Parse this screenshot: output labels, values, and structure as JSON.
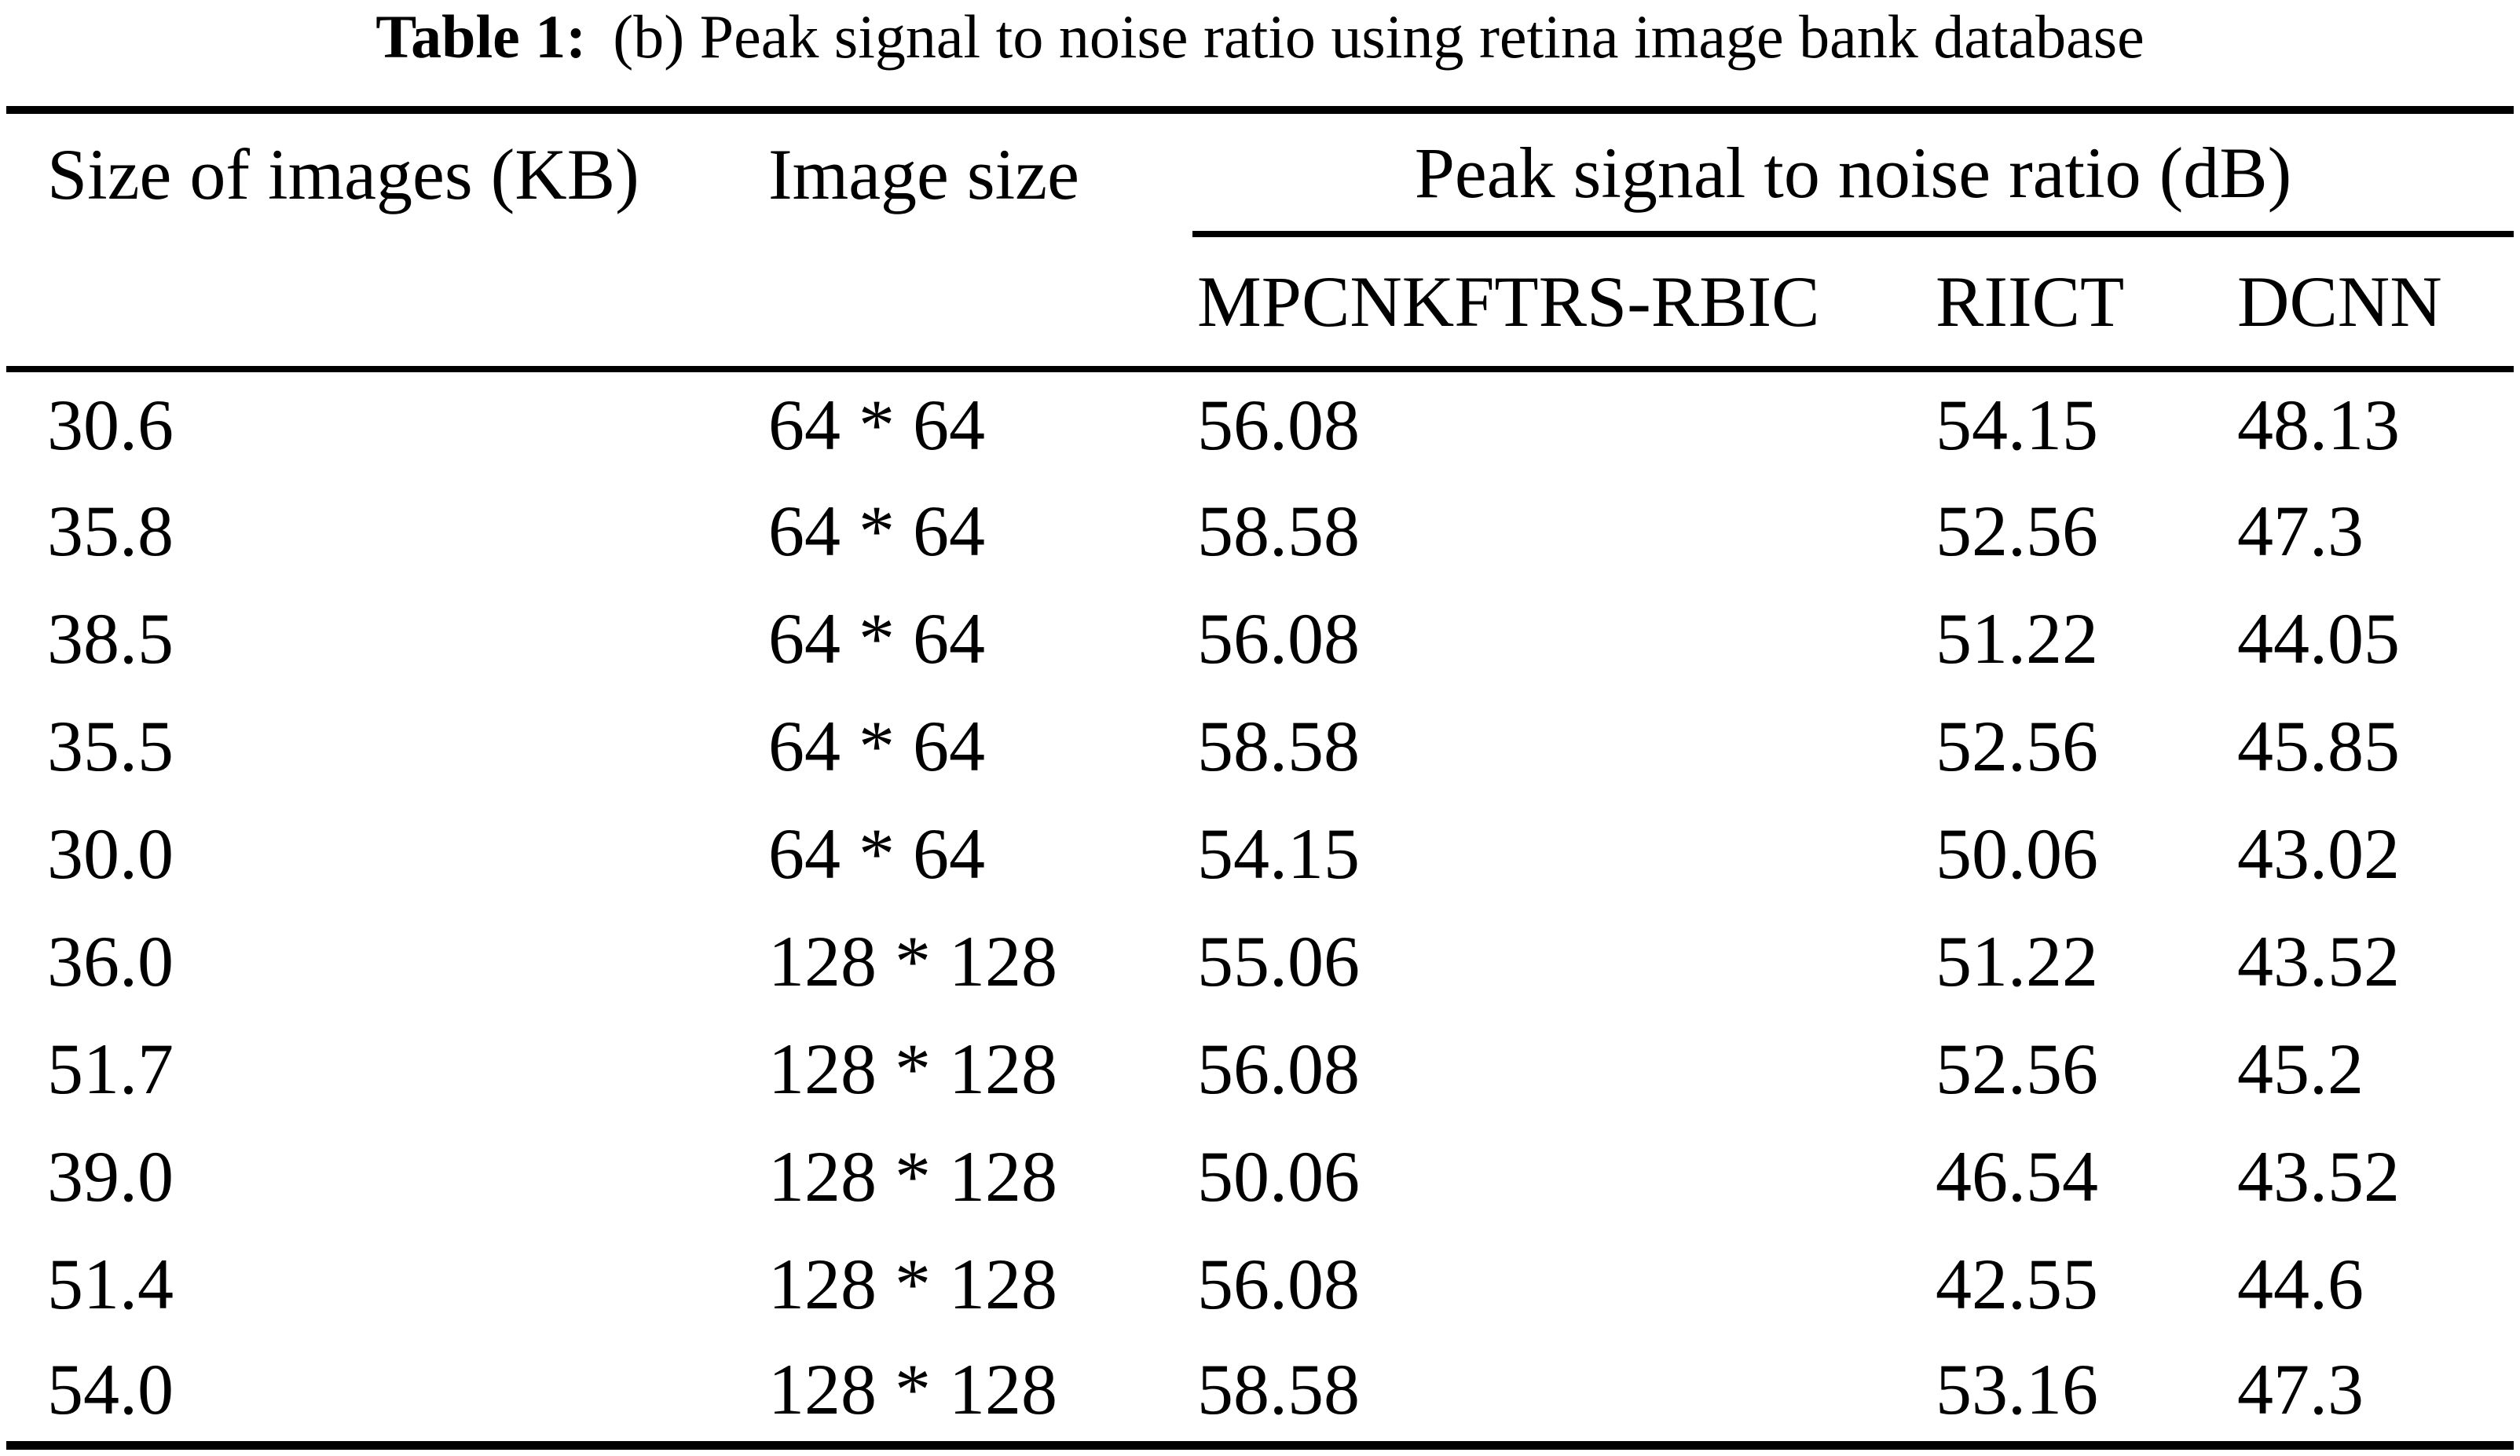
{
  "title": {
    "label": "Table 1:",
    "caption": "(b) Peak signal to noise ratio using retina image bank database"
  },
  "table": {
    "columns": {
      "size_kb": "Size of images (KB)",
      "image_size": "Image size",
      "psnr_group": "Peak signal to noise ratio (dB)"
    },
    "sub_columns": {
      "method1": "MPCNKFTRS-RBIC",
      "method2": "RIICT",
      "method3": "DCNN"
    },
    "rows": [
      [
        "30.6",
        "64 * 64",
        "56.08",
        "54.15",
        "48.13"
      ],
      [
        "35.8",
        "64 * 64",
        "58.58",
        "52.56",
        "47.3"
      ],
      [
        "38.5",
        "64 * 64",
        "56.08",
        "51.22",
        "44.05"
      ],
      [
        "35.5",
        "64 * 64",
        "58.58",
        "52.56",
        "45.85"
      ],
      [
        "30.0",
        "64 * 64",
        "54.15",
        "50.06",
        "43.02"
      ],
      [
        "36.0",
        "128 * 128",
        "55.06",
        "51.22",
        "43.52"
      ],
      [
        "51.7",
        "128 * 128",
        "56.08",
        "52.56",
        "45.2"
      ],
      [
        "39.0",
        "128 * 128",
        "50.06",
        "46.54",
        "43.52"
      ],
      [
        "51.4",
        "128 * 128",
        "56.08",
        "42.55",
        "44.6"
      ],
      [
        "54.0",
        "128 * 128",
        "58.58",
        "53.16",
        "47.3"
      ]
    ],
    "colors": {
      "text": "#000000",
      "background": "#ffffff",
      "rule": "#000000"
    }
  }
}
